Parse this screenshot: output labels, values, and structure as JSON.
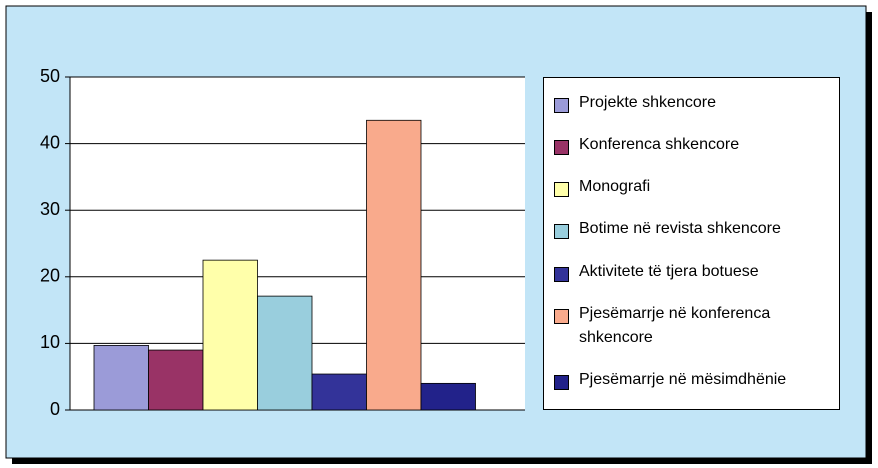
{
  "chart_data": {
    "type": "bar",
    "categories": [
      null
    ],
    "series": [
      {
        "name": "Projekte shkencore",
        "color": "#9b9bd8",
        "values": [
          9.7
        ]
      },
      {
        "name": "Konferenca shkencore",
        "color": "#993366",
        "values": [
          9.0
        ]
      },
      {
        "name": "Monografi",
        "color": "#ffffaa",
        "values": [
          22.5
        ]
      },
      {
        "name": "Botime në revista shkencore",
        "color": "#99cedd",
        "values": [
          17.1
        ]
      },
      {
        "name": "Aktivitete të tjera botuese",
        "color": "#333399",
        "values": [
          5.4
        ]
      },
      {
        "name": "Pjesëmarrje në konferenca shkencore",
        "color": "#f9aa8c",
        "values": [
          43.5
        ]
      },
      {
        "name": "Pjesëmarrje në mësimdhënie",
        "color": "#22228a",
        "values": [
          4.0
        ]
      }
    ],
    "ylim": [
      0,
      50
    ],
    "yticks": [
      0,
      10,
      20,
      30,
      40,
      50
    ],
    "grid": true,
    "legend": "right"
  }
}
